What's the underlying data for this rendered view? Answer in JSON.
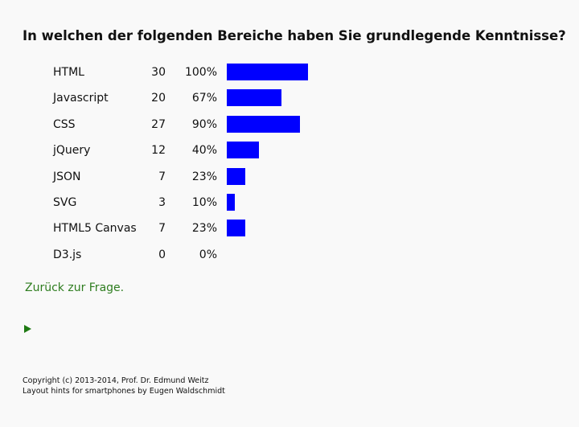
{
  "question": "In welchen der folgenden Bereiche haben Sie grundlegende Kenntnisse?",
  "bar_color": "#0000ff",
  "link_color": "#2e7d1f",
  "results": [
    {
      "label": "HTML",
      "count": "30",
      "percent": "100%",
      "fraction": 1.0
    },
    {
      "label": "Javascript",
      "count": "20",
      "percent": "67%",
      "fraction": 0.67
    },
    {
      "label": "CSS",
      "count": "27",
      "percent": "90%",
      "fraction": 0.9
    },
    {
      "label": "jQuery",
      "count": "12",
      "percent": "40%",
      "fraction": 0.4
    },
    {
      "label": "JSON",
      "count": "7",
      "percent": "23%",
      "fraction": 0.23
    },
    {
      "label": "SVG",
      "count": "3",
      "percent": "10%",
      "fraction": 0.1
    },
    {
      "label": "HTML5 Canvas",
      "count": "7",
      "percent": "23%",
      "fraction": 0.23
    },
    {
      "label": "D3.js",
      "count": "0",
      "percent": "0%",
      "fraction": 0.0
    }
  ],
  "back_link": "Zurück zur Frage.",
  "play_icon": "play-triangle-icon",
  "footer": {
    "line1": "Copyright (c) 2013-2014, Prof. Dr. Edmund Weitz",
    "line2": "Layout hints for smartphones by Eugen Waldschmidt"
  }
}
